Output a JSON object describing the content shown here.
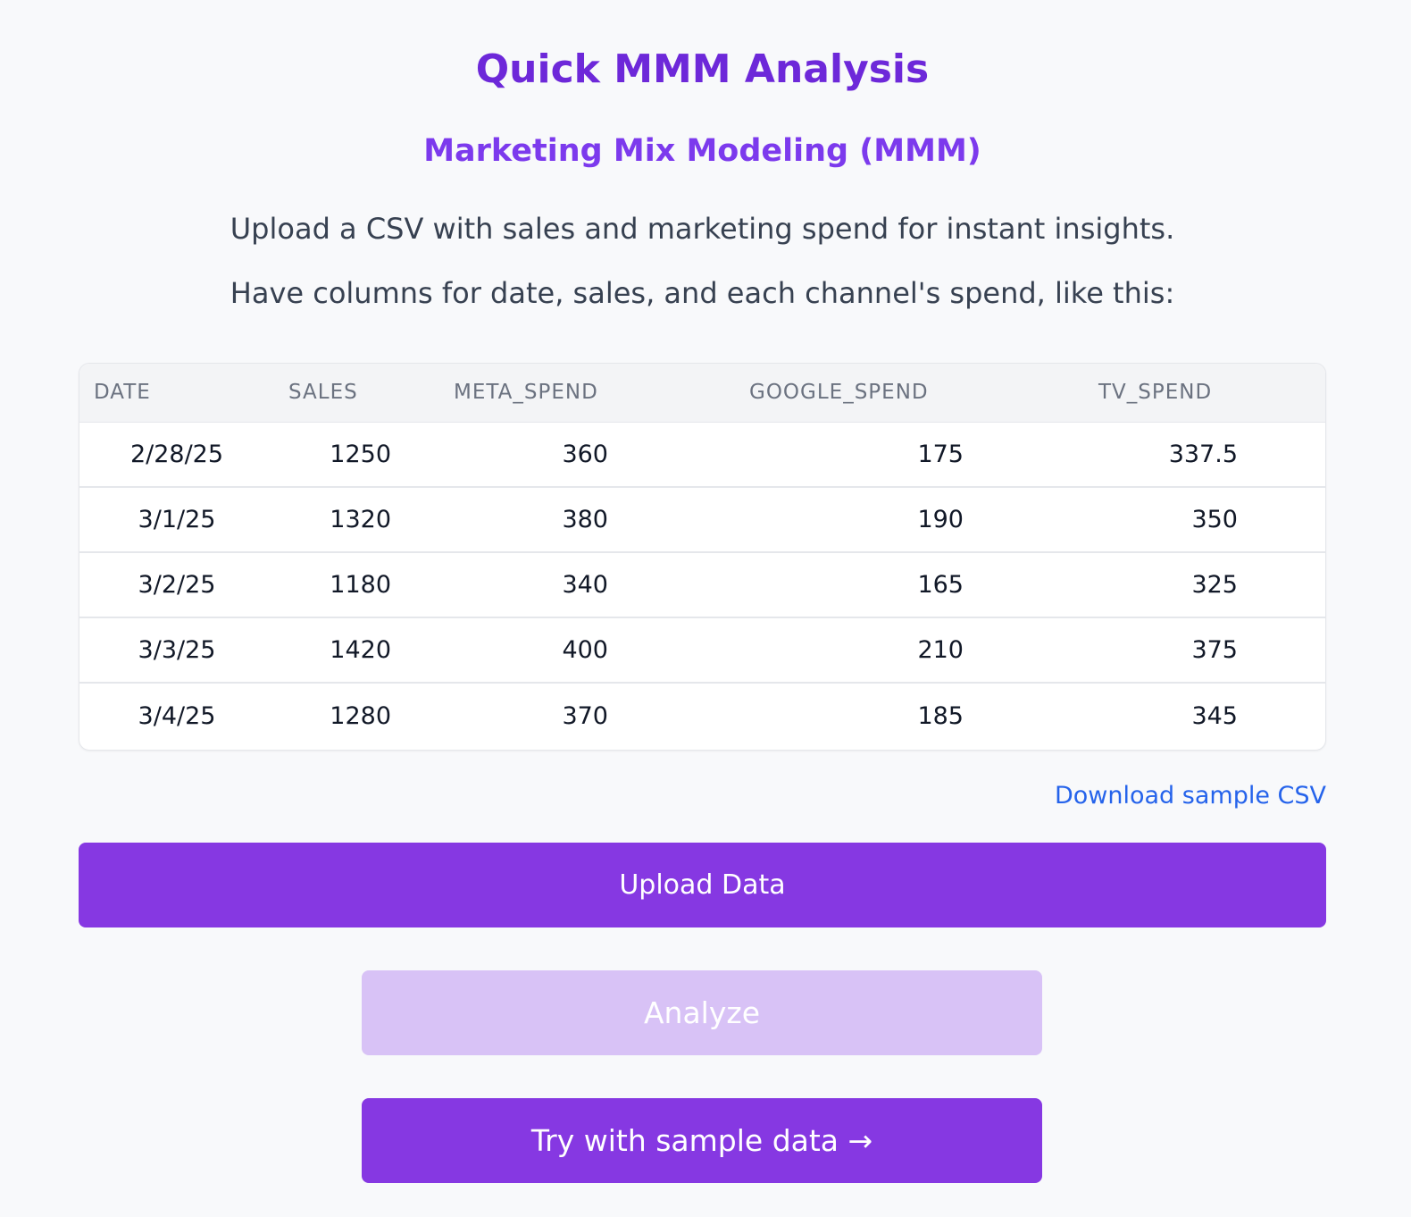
{
  "header": {
    "title": "Quick MMM Analysis",
    "subtitle": "Marketing Mix Modeling (MMM)",
    "intro_line1": "Upload a CSV with sales and marketing spend for instant insights.",
    "intro_line2": "Have columns for date, sales, and each channel's spend, like this:"
  },
  "sample_table": {
    "columns": [
      "DATE",
      "SALES",
      "META_SPEND",
      "GOOGLE_SPEND",
      "TV_SPEND"
    ],
    "rows": [
      [
        "2/28/25",
        "1250",
        "360",
        "175",
        "337.5"
      ],
      [
        "3/1/25",
        "1320",
        "380",
        "190",
        "350"
      ],
      [
        "3/2/25",
        "1180",
        "340",
        "165",
        "325"
      ],
      [
        "3/3/25",
        "1420",
        "400",
        "210",
        "375"
      ],
      [
        "3/4/25",
        "1280",
        "370",
        "185",
        "345"
      ]
    ]
  },
  "actions": {
    "download_label": "Download sample CSV",
    "upload_label": "Upload Data",
    "analyze_label": "Analyze",
    "sample_label": "Try with sample data →"
  },
  "colors": {
    "accent": "#8638e2",
    "accent_disabled": "#d8c2f6",
    "title": "#6d28d9",
    "link": "#2563eb"
  }
}
